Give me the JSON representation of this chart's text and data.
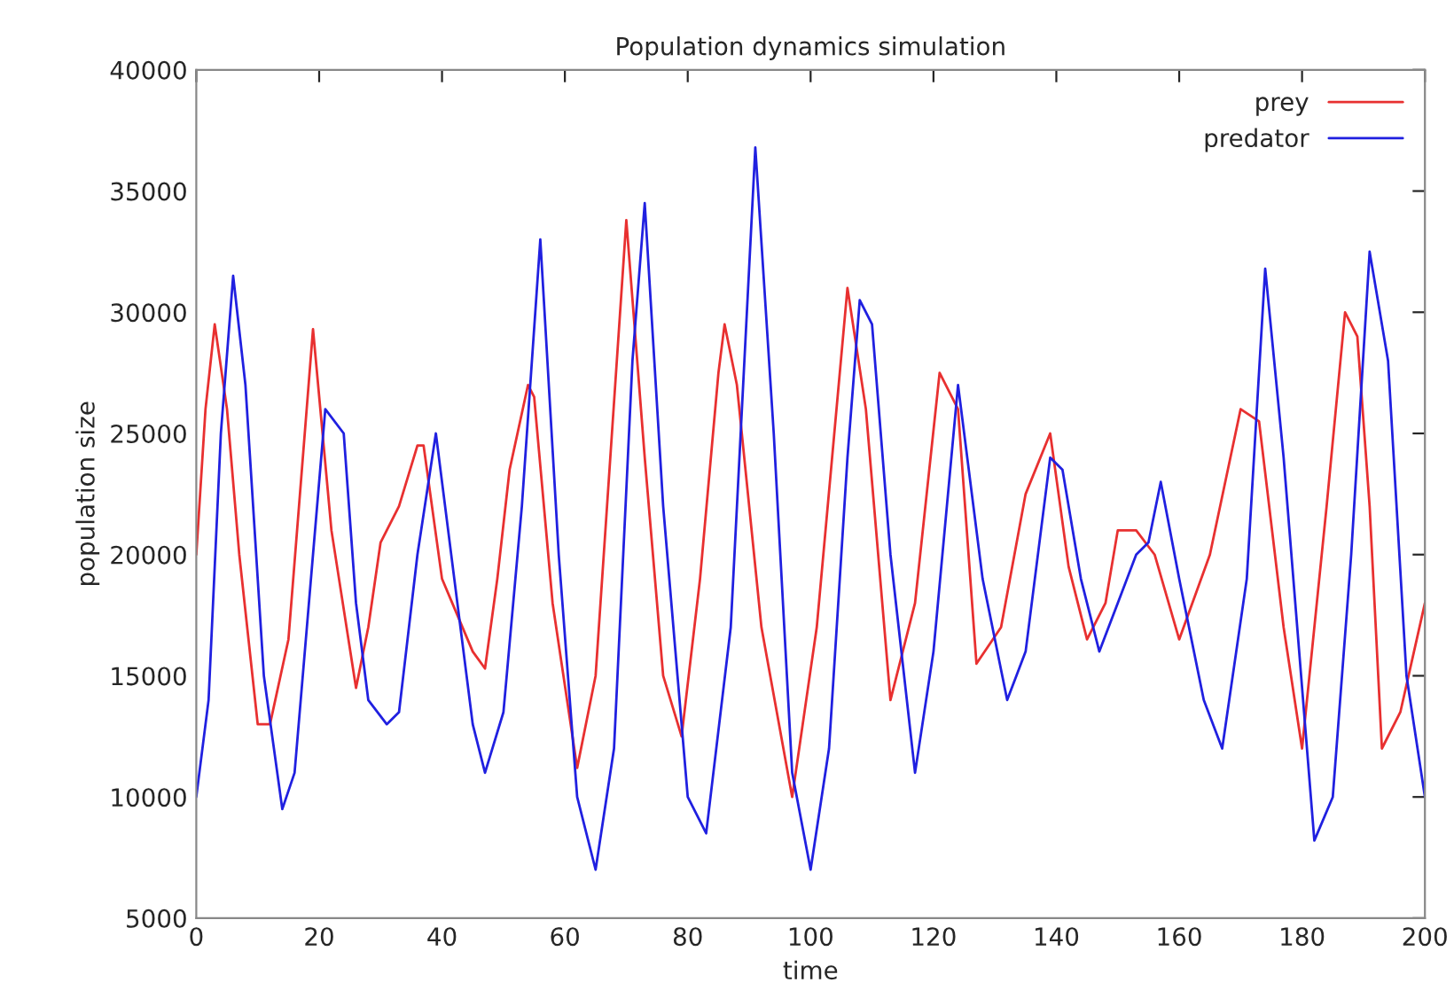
{
  "chart_data": {
    "type": "line",
    "title": "Population dynamics simulation",
    "xlabel": "time",
    "ylabel": "population size",
    "xlim": [
      0,
      200
    ],
    "ylim": [
      5000,
      40000
    ],
    "xticks": [
      0,
      20,
      40,
      60,
      80,
      100,
      120,
      140,
      160,
      180,
      200
    ],
    "yticks": [
      5000,
      10000,
      15000,
      20000,
      25000,
      30000,
      35000,
      40000
    ],
    "grid": false,
    "legend": "top right",
    "line_style": "solid",
    "marker": "none",
    "series": [
      {
        "name": "prey",
        "color": "#e83030",
        "x": [
          0,
          1.5,
          3,
          5,
          7,
          10,
          12,
          15,
          19,
          22,
          26,
          28,
          30,
          33,
          36,
          37,
          40,
          45,
          47,
          49,
          51,
          54,
          55,
          58,
          62,
          65,
          70,
          73,
          76,
          79,
          82,
          85,
          86,
          88,
          92,
          97,
          101,
          106,
          109,
          113,
          117,
          121,
          124,
          127,
          131,
          135,
          139,
          142,
          145,
          148,
          150,
          153,
          156,
          160,
          165,
          170,
          173,
          177,
          180,
          184,
          187,
          189,
          191,
          193,
          196,
          200
        ],
        "values": [
          20000,
          26000,
          29500,
          26000,
          20000,
          13000,
          13000,
          16500,
          29300,
          21000,
          14500,
          17000,
          20500,
          22000,
          24500,
          24500,
          19000,
          16000,
          15300,
          19000,
          23500,
          27000,
          26500,
          18000,
          11200,
          15000,
          33800,
          24000,
          15000,
          12500,
          19000,
          27500,
          29500,
          27000,
          17000,
          10000,
          17000,
          31000,
          26000,
          14000,
          18000,
          27500,
          26000,
          15500,
          17000,
          22500,
          25000,
          19500,
          16500,
          18000,
          21000,
          21000,
          20000,
          16500,
          20000,
          26000,
          25500,
          17000,
          12000,
          22000,
          30000,
          29000,
          22000,
          12000,
          13500,
          18000
        ]
      },
      {
        "name": "predator",
        "color": "#2020e0",
        "x": [
          0,
          2,
          4,
          6,
          8,
          11,
          14,
          16,
          19,
          21,
          24,
          26,
          28,
          31,
          33,
          36,
          39,
          42,
          45,
          47,
          50,
          53,
          56,
          59,
          62,
          65,
          68,
          71,
          73,
          76,
          80,
          83,
          87,
          91,
          94,
          97,
          100,
          103,
          106,
          108,
          110,
          113,
          117,
          120,
          124,
          128,
          132,
          135,
          139,
          141,
          144,
          147,
          150,
          153,
          155,
          157,
          160,
          164,
          167,
          171,
          174,
          177,
          182,
          185,
          188,
          191,
          194,
          197,
          200
        ],
        "values": [
          10000,
          14000,
          25000,
          31500,
          27000,
          15000,
          9500,
          11000,
          20000,
          26000,
          25000,
          18000,
          14000,
          13000,
          13500,
          20000,
          25000,
          19000,
          13000,
          11000,
          13500,
          22000,
          33000,
          20000,
          10000,
          7000,
          12000,
          28000,
          34500,
          22000,
          10000,
          8500,
          17000,
          36800,
          25000,
          11000,
          7000,
          12000,
          24000,
          30500,
          29500,
          20000,
          11000,
          16000,
          27000,
          19000,
          14000,
          16000,
          24000,
          23500,
          19000,
          16000,
          18000,
          20000,
          20500,
          23000,
          19000,
          14000,
          12000,
          19000,
          31800,
          24000,
          8200,
          10000,
          20000,
          32500,
          28000,
          15000,
          10000
        ]
      }
    ]
  }
}
